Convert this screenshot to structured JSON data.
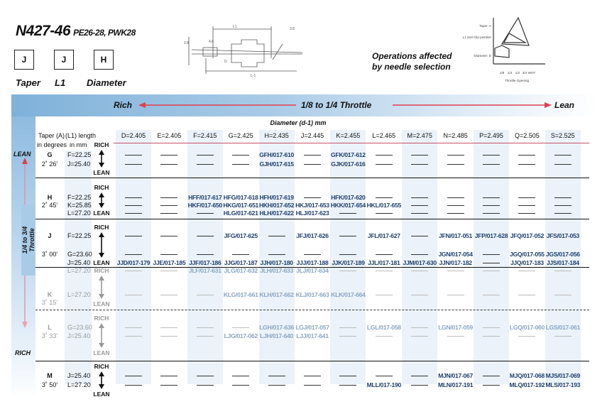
{
  "header": {
    "title": "N427-46",
    "subtitle": "PE26-28, PWK28",
    "selection": {
      "taper": "J",
      "l1": "J",
      "diameter": "H"
    },
    "labels": {
      "taper": "Taper",
      "l1": "L1",
      "diameter": "Diameter"
    },
    "operations_text_1": "Operations affected",
    "operations_text_2": "by needle selection"
  },
  "needle_drawing": {
    "dim_labels": [
      "L1",
      "L-1",
      "D",
      "2.8",
      "3.8",
      "4.8"
    ]
  },
  "operations_graph": {
    "rows": [
      "Taper: A",
      "L1 and Clip position",
      "Diameter: D"
    ],
    "x_ticks": [
      "1/8",
      "1/4",
      "1/2",
      "3/4",
      "WOT"
    ],
    "x_label": "Throttle Opening"
  },
  "band": {
    "rich": "Rich",
    "middle": "1/8 to 1/4 Throttle",
    "lean": "Lean",
    "arrow_color": "#e04050"
  },
  "side": {
    "lean": "LEAN",
    "rich": "RICH",
    "throttle_1": "1/4 to 3/4",
    "throttle_2": "Throttle"
  },
  "table": {
    "diameter_title": "Diameter (d-1) mm",
    "col_taper_1": "Taper (A)",
    "col_taper_2": "in degrees",
    "col_l1_1": "(L1) length",
    "col_l1_2": "in mm",
    "rich_label": "RICH",
    "lean_label": "LEAN",
    "columns": [
      "D=2.405",
      "E=2.405",
      "F=2.415",
      "G=2.425",
      "H=2.435",
      "J=2.445",
      "K=2.455",
      "L=2.465",
      "M=2.475",
      "N=2.485",
      "P=2.495",
      "Q=2.505",
      "S=2.525"
    ],
    "rows": [
      {
        "taper": "G",
        "angle": "2˚ 26'",
        "faded": false,
        "lengths": [
          "F=22.25",
          "J=25.40"
        ],
        "lines": [
          [
            null,
            null,
            null,
            null,
            "GFH/017-610",
            null,
            "GFK/017-612",
            null,
            null,
            null,
            null,
            null,
            null
          ],
          [
            null,
            null,
            null,
            null,
            "GJH/017-615",
            null,
            "GJK/017-616",
            null,
            null,
            null,
            null,
            null,
            null
          ]
        ]
      },
      {
        "taper": "H",
        "angle": "2˚ 45'",
        "faded": false,
        "lengths": [
          "F=22.25",
          "K=25.85",
          "L=27.20"
        ],
        "lines": [
          [
            null,
            null,
            "HFF/017-617",
            "HFG/017-618",
            "HFH/017-619",
            null,
            "HFK/017-620",
            null,
            null,
            null,
            null,
            null,
            null
          ],
          [
            null,
            null,
            "HKF/017-650",
            "HKG/017-651",
            "HKH/017-652",
            "HKJ/017-653",
            "HKK/017-654",
            "HKL/017-655",
            null,
            null,
            null,
            null,
            null
          ],
          [
            null,
            null,
            null,
            "HLG/017-621",
            "HLH/017-622",
            "HLJ/017-623",
            null,
            null,
            null,
            null,
            null,
            null,
            null
          ]
        ]
      },
      {
        "taper": "J",
        "angle": "3˚ 00'",
        "faded": false,
        "lengths": [
          "F=22.25",
          "G=23.60",
          "J=25.40"
        ],
        "lines": [
          [
            null,
            null,
            null,
            "JFG/017-625",
            null,
            "JFJ/017-626",
            null,
            "JFL/017-627",
            null,
            "JFN/017-051",
            "JFP/017-628",
            "JFQ/017-052",
            "JFS/017-053"
          ],
          [
            null,
            null,
            null,
            null,
            null,
            null,
            null,
            null,
            null,
            "JGN/017-054",
            null,
            "JGQ/017-055",
            "JGS/017-056"
          ],
          [
            "JJD/017-179",
            "JJE/017-185",
            "JJF/017-186",
            "JJG/017-187",
            "JJH/017-180",
            "JJJ/017-188",
            "JJK/017-189",
            "JJL/017-181",
            "JJM/017-630",
            "JJN/017-182",
            null,
            "JJQ/017-183",
            "JJS/017-184"
          ]
        ]
      },
      {
        "taper": "K",
        "angle": "3˚ 15'",
        "faded": true,
        "lengths": [
          "L=27.20",
          "L=27.20"
        ],
        "lines": [
          [
            null,
            null,
            "JLF/017-631",
            "JLG/017-632",
            "JLH/017-633",
            "JLJ/017-634",
            null,
            null,
            null,
            null,
            null,
            null,
            null
          ],
          [
            null,
            null,
            null,
            "KLG/017-661",
            "KLH/017-662",
            "KLJ/017-663",
            "KLK/017-664",
            null,
            null,
            null,
            null,
            null,
            null
          ]
        ]
      },
      {
        "taper": "L",
        "angle": "3˚ 33'",
        "faded": true,
        "lengths": [
          "G=23.60",
          "J=25.40"
        ],
        "lines": [
          [
            null,
            null,
            null,
            null,
            "LGH/017-636",
            "LGJ/017-057",
            null,
            "LGL/017-058",
            null,
            "LGN/017-059",
            null,
            "LGQ/017-060",
            "LGS/017-061"
          ],
          [
            null,
            null,
            null,
            "LJG/017-062",
            "LJH/017-640",
            "LJJ/017-641",
            null,
            null,
            null,
            null,
            null,
            null,
            null
          ]
        ]
      },
      {
        "taper": "M",
        "angle": "3˚ 50'",
        "faded": false,
        "lengths": [
          "J=25.40",
          "L=27.20"
        ],
        "lines": [
          [
            null,
            null,
            null,
            null,
            null,
            null,
            null,
            null,
            null,
            "MJN/017-067",
            null,
            "MJQ/017-068",
            "MJS/017-069"
          ],
          [
            null,
            null,
            null,
            null,
            null,
            null,
            null,
            "MLL/017-190",
            null,
            "MLN/017-191",
            null,
            "MLQ/017-192",
            "MLS/017-193"
          ]
        ]
      }
    ]
  }
}
